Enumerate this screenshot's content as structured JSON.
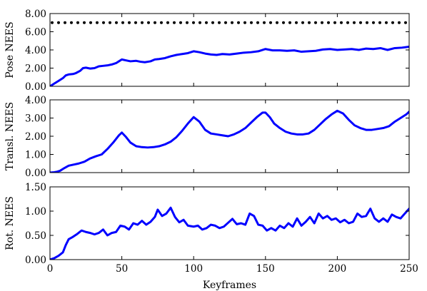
{
  "chart_data": [
    {
      "type": "line",
      "title": "",
      "xlabel": "",
      "ylabel": "Pose NEES",
      "xlim": [
        0,
        250
      ],
      "ylim": [
        0,
        8
      ],
      "x_ticks": [
        0,
        50,
        100,
        150,
        200,
        250
      ],
      "y_ticks": [
        "0.00",
        "2.00",
        "4.00",
        "6.00",
        "8.00"
      ],
      "show_x_tick_labels": false,
      "grid": false,
      "legend": "none",
      "series": [
        {
          "style": "solid",
          "color": "#0000ff",
          "x": [
            0,
            3,
            6,
            9,
            11,
            13,
            16,
            18,
            21,
            23,
            25,
            28,
            31,
            34,
            37,
            40,
            43,
            46,
            48,
            50,
            53,
            56,
            60,
            63,
            66,
            70,
            73,
            76,
            80,
            84,
            88,
            92,
            96,
            100,
            104,
            108,
            112,
            116,
            120,
            125,
            130,
            135,
            140,
            145,
            150,
            155,
            160,
            165,
            170,
            175,
            180,
            185,
            190,
            195,
            200,
            205,
            210,
            215,
            220,
            225,
            230,
            235,
            240,
            245,
            250
          ],
          "y": [
            0.0,
            0.3,
            0.6,
            0.9,
            1.2,
            1.3,
            1.35,
            1.45,
            1.7,
            2.0,
            2.05,
            1.95,
            2.0,
            2.2,
            2.25,
            2.3,
            2.4,
            2.55,
            2.75,
            2.95,
            2.85,
            2.75,
            2.8,
            2.7,
            2.65,
            2.75,
            2.95,
            3.0,
            3.1,
            3.3,
            3.45,
            3.55,
            3.65,
            3.85,
            3.75,
            3.6,
            3.5,
            3.45,
            3.55,
            3.5,
            3.6,
            3.7,
            3.75,
            3.85,
            4.1,
            3.95,
            3.95,
            3.9,
            3.95,
            3.8,
            3.85,
            3.9,
            4.05,
            4.1,
            4.0,
            4.05,
            4.1,
            4.0,
            4.15,
            4.1,
            4.2,
            4.0,
            4.2,
            4.25,
            4.35
          ]
        },
        {
          "style": "dotted",
          "color": "#000000",
          "x": [
            0,
            250
          ],
          "y": [
            7.0,
            7.0
          ]
        }
      ]
    },
    {
      "type": "line",
      "title": "",
      "xlabel": "",
      "ylabel": "Transl. NEES",
      "xlim": [
        0,
        250
      ],
      "ylim": [
        0,
        4
      ],
      "x_ticks": [
        0,
        50,
        100,
        150,
        200,
        250
      ],
      "y_ticks": [
        "0.00",
        "1.00",
        "2.00",
        "3.00",
        "4.00"
      ],
      "show_x_tick_labels": false,
      "grid": false,
      "legend": "none",
      "series": [
        {
          "style": "solid",
          "color": "#0000ff",
          "x": [
            0,
            3,
            5,
            7,
            10,
            13,
            17,
            20,
            24,
            28,
            32,
            36,
            40,
            44,
            48,
            50,
            53,
            56,
            60,
            64,
            68,
            72,
            76,
            80,
            84,
            88,
            92,
            96,
            100,
            104,
            108,
            112,
            116,
            120,
            124,
            128,
            132,
            136,
            140,
            144,
            148,
            150,
            153,
            156,
            160,
            164,
            168,
            172,
            176,
            180,
            184,
            188,
            192,
            196,
            200,
            204,
            208,
            212,
            216,
            220,
            224,
            228,
            232,
            236,
            240,
            244,
            248,
            250
          ],
          "y": [
            0.0,
            0.02,
            0.05,
            0.1,
            0.25,
            0.38,
            0.45,
            0.5,
            0.6,
            0.78,
            0.9,
            1.0,
            1.3,
            1.65,
            2.05,
            2.2,
            1.95,
            1.65,
            1.45,
            1.4,
            1.38,
            1.4,
            1.45,
            1.55,
            1.7,
            1.95,
            2.3,
            2.7,
            3.05,
            2.8,
            2.35,
            2.15,
            2.1,
            2.05,
            2.0,
            2.1,
            2.25,
            2.45,
            2.75,
            3.05,
            3.3,
            3.3,
            3.05,
            2.7,
            2.45,
            2.25,
            2.15,
            2.1,
            2.1,
            2.15,
            2.35,
            2.65,
            2.95,
            3.2,
            3.4,
            3.25,
            2.9,
            2.6,
            2.45,
            2.35,
            2.35,
            2.4,
            2.45,
            2.55,
            2.8,
            3.0,
            3.2,
            3.35
          ]
        }
      ]
    },
    {
      "type": "line",
      "title": "",
      "xlabel": "Keyframes",
      "ylabel": "Rot. NEES",
      "xlim": [
        0,
        250
      ],
      "ylim": [
        0,
        1.5
      ],
      "x_ticks": [
        0,
        50,
        100,
        150,
        200,
        250
      ],
      "x_tick_labels": [
        "0",
        "50",
        "100",
        "150",
        "200",
        "250"
      ],
      "y_ticks": [
        "0.00",
        "0.50",
        "1.00",
        "1.50"
      ],
      "show_x_tick_labels": true,
      "grid": false,
      "legend": "none",
      "series": [
        {
          "style": "solid",
          "color": "#0000ff",
          "x": [
            0,
            3,
            6,
            9,
            11,
            13,
            16,
            19,
            22,
            25,
            28,
            31,
            34,
            37,
            40,
            43,
            46,
            49,
            52,
            55,
            58,
            61,
            64,
            67,
            70,
            73,
            75,
            78,
            81,
            84,
            87,
            90,
            93,
            96,
            100,
            103,
            106,
            109,
            112,
            115,
            118,
            121,
            124,
            127,
            130,
            133,
            136,
            139,
            142,
            145,
            148,
            151,
            154,
            157,
            160,
            163,
            166,
            169,
            172,
            175,
            178,
            181,
            184,
            187,
            190,
            193,
            196,
            199,
            202,
            205,
            208,
            211,
            214,
            217,
            220,
            223,
            226,
            229,
            232,
            235,
            238,
            241,
            244,
            247,
            250
          ],
          "y": [
            0.0,
            0.03,
            0.08,
            0.15,
            0.3,
            0.42,
            0.47,
            0.53,
            0.6,
            0.57,
            0.55,
            0.52,
            0.55,
            0.62,
            0.5,
            0.55,
            0.57,
            0.7,
            0.68,
            0.62,
            0.75,
            0.72,
            0.8,
            0.72,
            0.78,
            0.88,
            1.03,
            0.9,
            0.95,
            1.07,
            0.88,
            0.77,
            0.82,
            0.7,
            0.68,
            0.7,
            0.62,
            0.65,
            0.72,
            0.7,
            0.65,
            0.68,
            0.76,
            0.84,
            0.73,
            0.75,
            0.72,
            0.95,
            0.9,
            0.72,
            0.7,
            0.6,
            0.65,
            0.6,
            0.7,
            0.65,
            0.75,
            0.68,
            0.85,
            0.7,
            0.78,
            0.88,
            0.75,
            0.95,
            0.85,
            0.9,
            0.82,
            0.85,
            0.77,
            0.82,
            0.75,
            0.78,
            0.95,
            0.88,
            0.9,
            1.05,
            0.85,
            0.78,
            0.85,
            0.78,
            0.93,
            0.88,
            0.85,
            0.95,
            1.05
          ]
        }
      ]
    }
  ]
}
